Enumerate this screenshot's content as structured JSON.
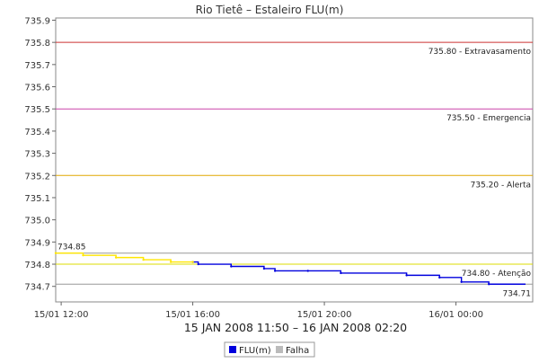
{
  "chart_data": {
    "type": "line",
    "title": "Rio Tietê – Estaleiro FLU(m)",
    "subtitle": "15 JAN 2008 11:50 – 16 JAN 2008 02:20",
    "xlabel": "",
    "ylabel": "",
    "x_range": [
      "2008-01-15 11:50",
      "2008-01-16 02:20"
    ],
    "ylim": [
      734.63,
      735.91
    ],
    "y_ticks": [
      734.7,
      734.8,
      734.9,
      735.0,
      735.1,
      735.2,
      735.3,
      735.4,
      735.5,
      735.6,
      735.7,
      735.8,
      735.9
    ],
    "y_tick_labels": [
      "734.7",
      "734.8",
      "734.9",
      "735.0",
      "735.1",
      "735.2",
      "735.3",
      "735.4",
      "735.5",
      "735.6",
      "735.7",
      "735.8",
      "735.9"
    ],
    "x_ticks": [
      {
        "label": "15/01 12:00",
        "time": "2008-01-15 12:00"
      },
      {
        "label": "15/01 16:00",
        "time": "2008-01-15 16:00"
      },
      {
        "label": "15/01 20:00",
        "time": "2008-01-15 20:00"
      },
      {
        "label": "16/01 00:00",
        "time": "2008-01-16 00:00"
      }
    ],
    "grid": false,
    "thresholds": [
      {
        "value": 735.8,
        "label": "735.80 - Extravasamento",
        "color": "#cc3333"
      },
      {
        "value": 735.5,
        "label": "735.50 - Emergencia",
        "color": "#cc44aa"
      },
      {
        "value": 735.2,
        "label": "735.20 - Alerta",
        "color": "#e0a800"
      },
      {
        "value": 734.8,
        "label": "734.80 - Atenção",
        "color": "#dddd00"
      }
    ],
    "reference_lines": [
      {
        "value": 734.85,
        "label": "734.85",
        "color": "#999999"
      },
      {
        "value": 734.71,
        "label": "734.71",
        "color": "#999999"
      }
    ],
    "series": [
      {
        "name": "FLU(m)",
        "color": "#0000dd",
        "x": [
          "2008-01-15 16:00",
          "2008-01-15 16:10",
          "2008-01-15 17:10",
          "2008-01-15 18:10",
          "2008-01-15 18:30",
          "2008-01-15 19:30",
          "2008-01-15 20:30",
          "2008-01-15 22:30",
          "2008-01-15 23:30",
          "2008-01-16 00:10",
          "2008-01-16 01:00"
        ],
        "y": [
          734.81,
          734.8,
          734.79,
          734.78,
          734.77,
          734.77,
          734.76,
          734.75,
          734.74,
          734.72,
          734.71
        ]
      },
      {
        "name": "",
        "color": "#ffe600",
        "x": [
          "2008-01-15 11:50",
          "2008-01-15 12:40",
          "2008-01-15 13:40",
          "2008-01-15 14:30",
          "2008-01-15 15:20",
          "2008-01-15 16:00"
        ],
        "y": [
          734.85,
          734.84,
          734.83,
          734.82,
          734.81,
          734.81
        ]
      }
    ],
    "legend": {
      "placement": "bottom",
      "items": [
        {
          "name": "FLU(m)",
          "color": "#0000dd"
        },
        {
          "name": "Falha",
          "color": "#bbbbbb"
        }
      ]
    }
  }
}
